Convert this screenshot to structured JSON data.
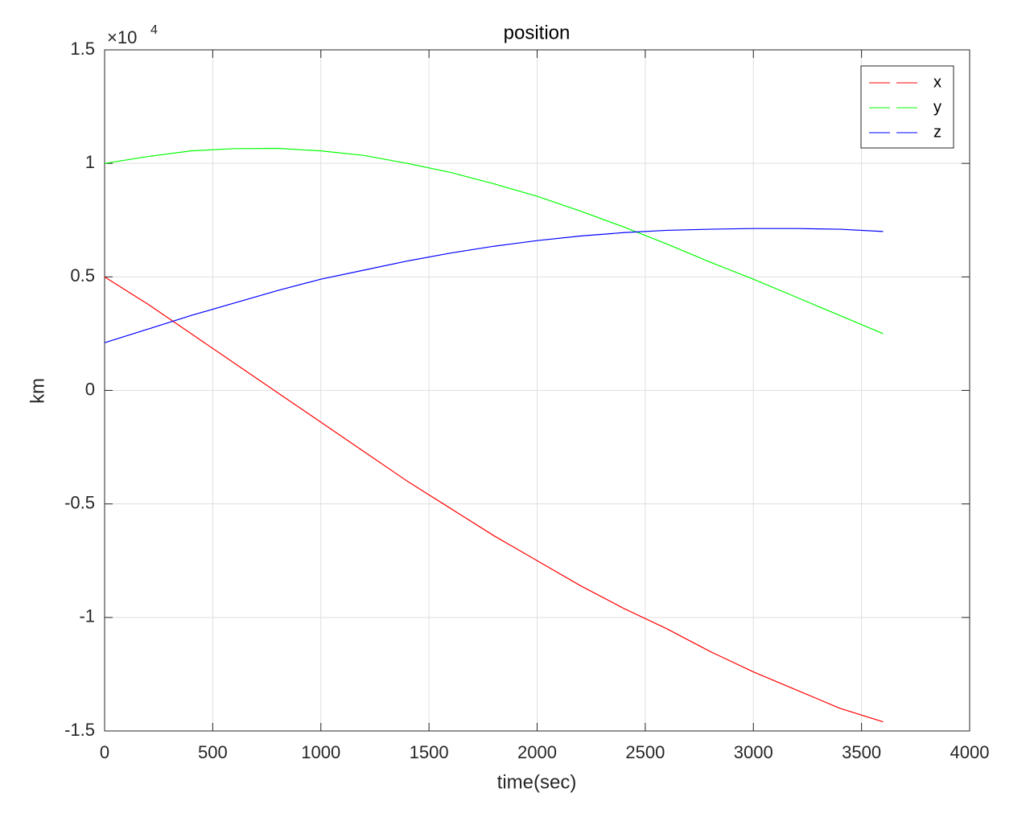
{
  "chart_data": {
    "type": "line",
    "title": "position",
    "xlabel": "time(sec)",
    "ylabel": "km",
    "y_multiplier_base": "×10",
    "y_multiplier_power": "4",
    "x": [
      0,
      200,
      400,
      600,
      800,
      1000,
      1200,
      1400,
      1600,
      1800,
      2000,
      2200,
      2400,
      2600,
      2800,
      3000,
      3200,
      3400,
      3600
    ],
    "series": [
      {
        "name": "x",
        "color": "#ff0000",
        "values": [
          0.5,
          0.38,
          0.25,
          0.12,
          -0.01,
          -0.14,
          -0.27,
          -0.4,
          -0.52,
          -0.64,
          -0.75,
          -0.86,
          -0.96,
          -1.05,
          -1.15,
          -1.24,
          -1.32,
          -1.4,
          -1.46
        ]
      },
      {
        "name": "y",
        "color": "#00ff00",
        "values": [
          1.0,
          1.03,
          1.055,
          1.065,
          1.066,
          1.055,
          1.035,
          1.0,
          0.96,
          0.91,
          0.855,
          0.79,
          0.72,
          0.645,
          0.565,
          0.49,
          0.41,
          0.33,
          0.25
        ]
      },
      {
        "name": "z",
        "color": "#0000ff",
        "values": [
          0.21,
          0.27,
          0.33,
          0.385,
          0.44,
          0.49,
          0.53,
          0.57,
          0.605,
          0.635,
          0.66,
          0.68,
          0.695,
          0.705,
          0.71,
          0.713,
          0.713,
          0.71,
          0.7
        ]
      }
    ],
    "xlim": [
      0,
      4000
    ],
    "xticks": [
      0,
      500,
      1000,
      1500,
      2000,
      2500,
      3000,
      3500,
      4000
    ],
    "ylim": [
      -1.5,
      1.5
    ],
    "yticks": [
      -1.5,
      -1,
      -0.5,
      0,
      0.5,
      1,
      1.5
    ],
    "grid": true,
    "legend": "northeast"
  }
}
